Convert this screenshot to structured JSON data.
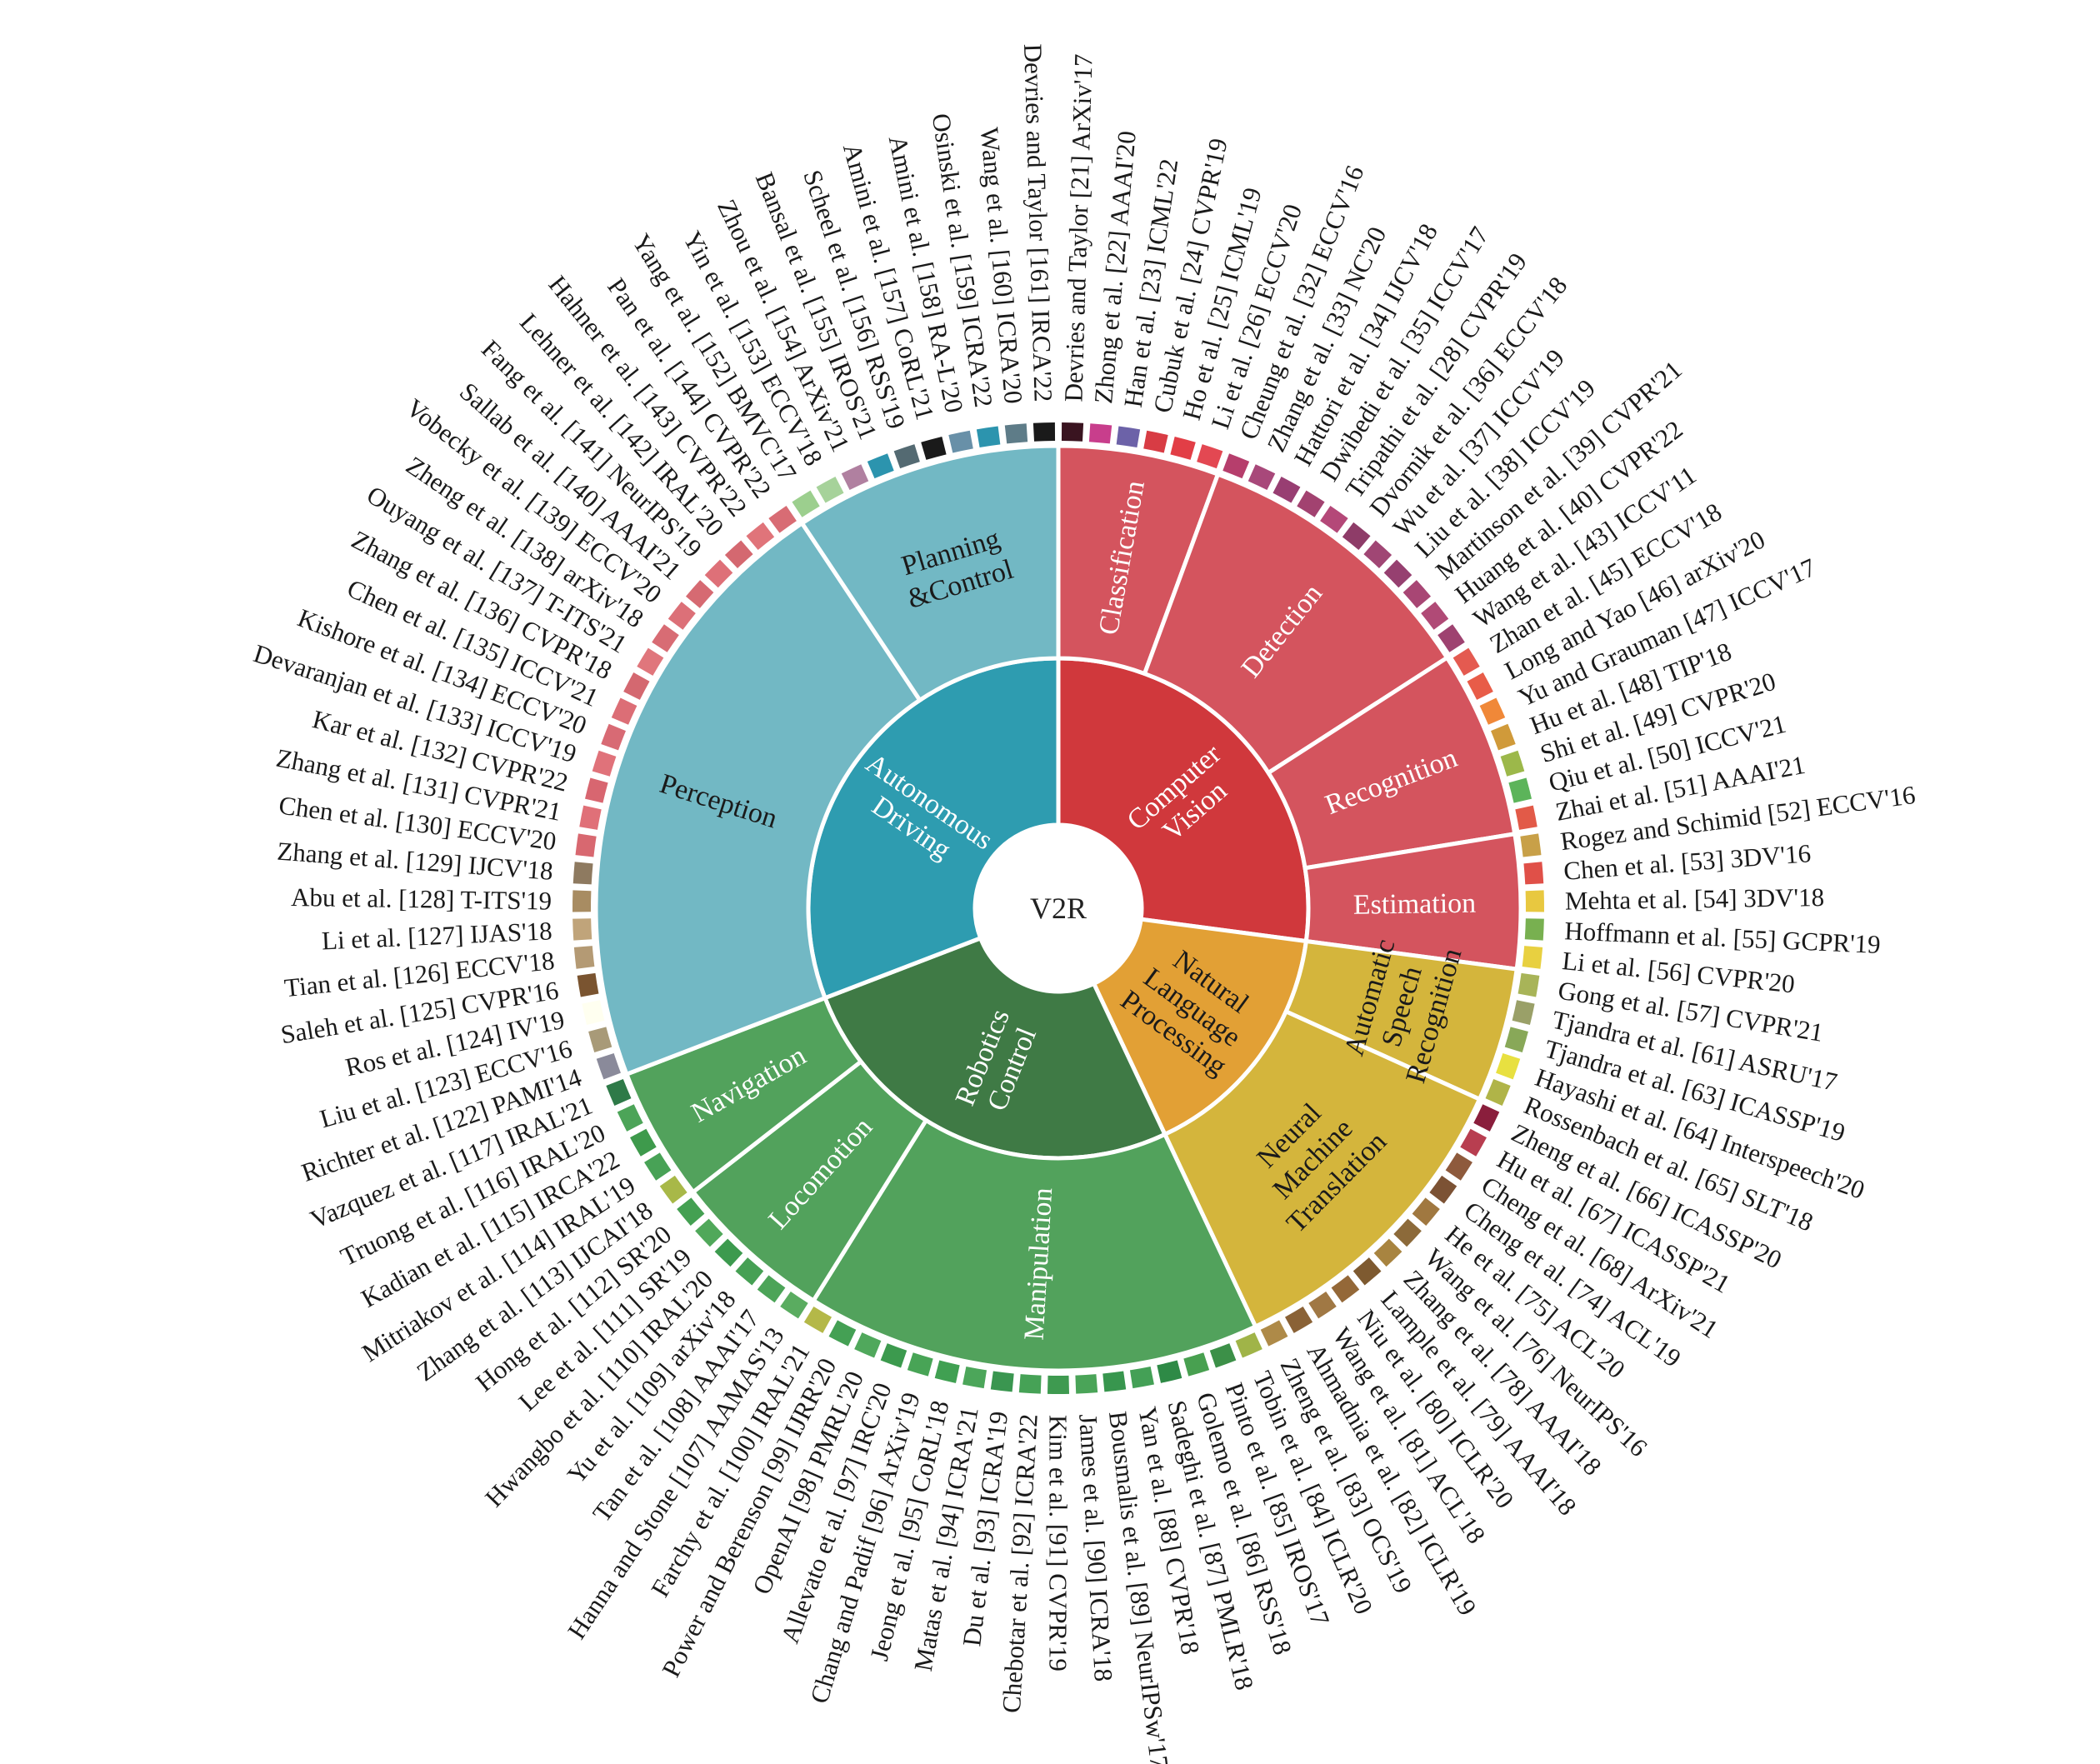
{
  "center": {
    "label": "V2R",
    "color": "#ffffff"
  },
  "domains": [
    {
      "label": "Computer\nVision",
      "color": "#D0383C",
      "text_color": "#ffffff",
      "subs": [
        {
          "label": "Classification",
          "color": "#D4545E",
          "text_color": "#ffffff",
          "refs": [
            {
              "text": "Devries and Taylor [21] ArXiv'17",
              "color": "#3A1420"
            },
            {
              "text": "Zhong et al. [22] AAAI'20",
              "color": "#C83E8C"
            },
            {
              "text": "Han et al. [23] ICML'22",
              "color": "#6C62A8"
            },
            {
              "text": "Cubuk et al. [24] CVPR'19",
              "color": "#D83C44"
            },
            {
              "text": "Ho et al. [25] ICML'19",
              "color": "#E23E46"
            },
            {
              "text": "Li et al. [26] ECCV'20",
              "color": "#E34852"
            }
          ]
        },
        {
          "label": "Detection",
          "color": "#D4545E",
          "text_color": "#ffffff",
          "refs": [
            {
              "text": "Cheung et al. [32] ECCV'16",
              "color": "#B63E6C"
            },
            {
              "text": "Zhang et al. [33] NC'20",
              "color": "#A8487A"
            },
            {
              "text": "Hattori et al. [34] IJCV'18",
              "color": "#983E72"
            },
            {
              "text": "Dwibedi et al. [35] ICCV'17",
              "color": "#A24270"
            },
            {
              "text": "Tripathi et al. [28] CVPR'19",
              "color": "#B44878"
            },
            {
              "text": "Dvornik et al. [36] ECCV'18",
              "color": "#8E3C68"
            },
            {
              "text": "Wu et al. [37] ICCV'19",
              "color": "#A04674"
            },
            {
              "text": "Liu et al. [38] ICCV'19",
              "color": "#964070"
            },
            {
              "text": "Martinson et al. [39] CVPR'21",
              "color": "#A84674"
            },
            {
              "text": "Huang et al. [40] CVPR'22",
              "color": "#B04A76"
            },
            {
              "text": "Wang et al. [43] ICCV'11",
              "color": "#9E4270"
            }
          ]
        },
        {
          "label": "Recognition",
          "color": "#D4545E",
          "text_color": "#ffffff",
          "refs": [
            {
              "text": "Zhan et al. [45] ECCV'18",
              "color": "#E45A50"
            },
            {
              "text": "Long and Yao [46] arXiv'20",
              "color": "#E85C48"
            },
            {
              "text": "Yu and Grauman [47] ICCV'17",
              "color": "#F08838"
            },
            {
              "text": "Hu et al. [48] TIP'18",
              "color": "#D09A3A"
            },
            {
              "text": "Shi et al. [49] CVPR'20",
              "color": "#9CB84A"
            },
            {
              "text": "Qiu et al. [50] ICCV'21",
              "color": "#5CB45A"
            },
            {
              "text": "Zhai et al. [51] AAAI'21",
              "color": "#E25A48"
            }
          ]
        },
        {
          "label": "Estimation",
          "color": "#D4545E",
          "text_color": "#ffffff",
          "refs": [
            {
              "text": "Rogez and Schimid [52] ECCV'16",
              "color": "#C8A048"
            },
            {
              "text": "Chen et al. [53] 3DV'16",
              "color": "#E05048"
            },
            {
              "text": "Mehta et al. [54] 3DV'18",
              "color": "#E8C840"
            },
            {
              "text": "Hoffmann et al. [55] GCPR'19",
              "color": "#78B050"
            },
            {
              "text": "Li et al. [56] CVPR'20",
              "color": "#E8D040"
            }
          ]
        }
      ]
    },
    {
      "label": "Natural\nLanguage\nProcessing",
      "color": "#E2A035",
      "text_color": "#1a1a1a",
      "subs": [
        {
          "label": "Automatic\nSpeech\nRecognition",
          "color": "#D4B53C",
          "text_color": "#1a1a1a",
          "refs": [
            {
              "text": "Gong et al. [57] CVPR'21",
              "color": "#A8B458"
            },
            {
              "text": "Tjandra et al. [61] ASRU'17",
              "color": "#9AA068"
            },
            {
              "text": "Tjandra et al. [63] ICASSP'19",
              "color": "#88A858"
            },
            {
              "text": "Hayashi et al. [64] Interspeech'20",
              "color": "#E8E040"
            },
            {
              "text": "Rossenbach et al. [65] SLT'18",
              "color": "#B0B448"
            }
          ]
        },
        {
          "label": "Neural\nMachine\nTranslation",
          "color": "#D4B53C",
          "text_color": "#1a1a1a",
          "refs": [
            {
              "text": "Zheng et al. [66] ICASSP'20",
              "color": "#8A1E3C"
            },
            {
              "text": "Hu et al. [67] ICASSP'21",
              "color": "#B83E50"
            },
            {
              "text": "Cheng et al. [68] ArXiv'21",
              "color": "#8E5A3C"
            },
            {
              "text": "Cheng et al. [74] ACL'19",
              "color": "#7C5234"
            },
            {
              "text": "He et al. [75] ACL'20",
              "color": "#A07840"
            },
            {
              "text": "Wang et al. [76] NeurIPS'16",
              "color": "#8C6A3A"
            },
            {
              "text": "Zhang et al. [78] AAAI'18",
              "color": "#A88440"
            },
            {
              "text": "Lample et al. [79] AAAI'18",
              "color": "#7E5A30"
            },
            {
              "text": "Niu et al. [80] ICLR'20",
              "color": "#946838"
            },
            {
              "text": "Wang et al. [81] ACL'18",
              "color": "#A07844"
            },
            {
              "text": "Ahmadnia et al. [82] ICLR'19",
              "color": "#8A6236"
            },
            {
              "text": "Zheng et al. [83] OCS'19",
              "color": "#AE8A48"
            }
          ]
        }
      ]
    },
    {
      "label": "Robotics\nControl",
      "color": "#3F7A45",
      "text_color": "#ffffff",
      "subs": [
        {
          "label": "Manipulation",
          "color": "#52A25C",
          "text_color": "#ffffff",
          "refs": [
            {
              "text": "Tobin et al. [84] ICLR'20",
              "color": "#A0B448"
            },
            {
              "text": "Pinto et al. [85] IROS'17",
              "color": "#3C9048"
            },
            {
              "text": "Golemo et al. [86] RSS'18",
              "color": "#48A050"
            },
            {
              "text": "Sadeghi et al. [87] PMLR'18",
              "color": "#2E8A46"
            },
            {
              "text": "Yan et al. [88] CVPR'18",
              "color": "#44A056"
            },
            {
              "text": "Bousmalis et al. [89] NeurIPSw'17",
              "color": "#38964E"
            },
            {
              "text": "James et al. [90] ICRA'18",
              "color": "#4AA458"
            },
            {
              "text": "Kim et al. [91] CVPR'19",
              "color": "#3E9A50"
            },
            {
              "text": "Chebotar et al. [92] ICRA'22",
              "color": "#46A256"
            },
            {
              "text": "Du et al. [93] ICRA'19",
              "color": "#3A9650"
            },
            {
              "text": "Matas et al. [94] ICRA'21",
              "color": "#4CA65A"
            },
            {
              "text": "Jeong et al. [95] CoRL'18",
              "color": "#40A052"
            },
            {
              "text": "Chang and Padif [96] ArXiv'19",
              "color": "#48A456"
            },
            {
              "text": "Allevato et al. [97] IRC'20",
              "color": "#3C9A4E"
            },
            {
              "text": "OpenAI [98] PMRL'20",
              "color": "#50A85C"
            },
            {
              "text": "Power and Berenson [99] IJRR'20",
              "color": "#44A054"
            },
            {
              "text": "Farchy et al. [100] IRAL'21",
              "color": "#B4B848"
            }
          ]
        },
        {
          "label": "Locomotion",
          "color": "#52A25C",
          "text_color": "#ffffff",
          "refs": [
            {
              "text": "Hanna and Stone [107] AAMAS'13",
              "color": "#5AAC60"
            },
            {
              "text": "Tan et al. [108] AAAI'17",
              "color": "#4CA458"
            },
            {
              "text": "Yu et al. [109] arXiv'18",
              "color": "#46A054"
            },
            {
              "text": "Hwangbo et al. [110] IRAL'20",
              "color": "#3C9A4E"
            },
            {
              "text": "Lee et al. [111] SR'19",
              "color": "#50A85A"
            },
            {
              "text": "Hong et al. [112] SR'20",
              "color": "#44A052"
            }
          ]
        },
        {
          "label": "Navigation",
          "color": "#52A25C",
          "text_color": "#ffffff",
          "refs": [
            {
              "text": "Zhang et al. [113] IJCAI'18",
              "color": "#A8B848"
            },
            {
              "text": "Mitriakov et al. [114] IRAL'19",
              "color": "#48A256"
            },
            {
              "text": "Kadian et al. [115] IRCA'22",
              "color": "#3E9A4C"
            },
            {
              "text": "Truong et al. [116] IRAL'20",
              "color": "#4CA458"
            },
            {
              "text": "Vazquez et al. [117] IRAL'21",
              "color": "#2E7A48"
            }
          ]
        }
      ]
    },
    {
      "label": "Autonomous\nDriving",
      "color": "#2E9CB0",
      "text_color": "#ffffff",
      "subs": [
        {
          "label": "Perception",
          "color": "#72B8C4",
          "text_color": "#1a1a1a",
          "refs": [
            {
              "text": "Richter et al. [122] PAMI'14",
              "color": "#8A8A9A"
            },
            {
              "text": "Liu et al. [123] ECCV'16",
              "color": "#A89A78"
            },
            {
              "text": "Ros et al. [124] IV'19",
              "color": "#FFFFF0"
            },
            {
              "text": "Saleh et al. [125] CVPR'16",
              "color": "#7A5430"
            },
            {
              "text": "Tian et al. [126] ECCV'18",
              "color": "#B49A74"
            },
            {
              "text": "Li et al. [127] IJAS'18",
              "color": "#C0A47A"
            },
            {
              "text": "Abu et al. [128] T-ITS'19",
              "color": "#A88C62"
            },
            {
              "text": "Zhang et al. [129] IJCV'18",
              "color": "#8E7A60"
            },
            {
              "text": "Chen et al. [130] ECCV'20",
              "color": "#D86870"
            },
            {
              "text": "Zhang et al. [131] CVPR'21",
              "color": "#E07078"
            },
            {
              "text": "Kar et al. [132] CVPR'22",
              "color": "#D86670"
            },
            {
              "text": "Devaranjan et al. [133] ICCV'19",
              "color": "#E0727A"
            },
            {
              "text": "Kishore et al. [134] ECCV'20",
              "color": "#D86A74"
            },
            {
              "text": "Chen et al. [135] ICCV'21",
              "color": "#DC6E76"
            },
            {
              "text": "Zhang et al. [136] CVPR'18",
              "color": "#D46870"
            },
            {
              "text": "Ouyang et al. [137] T-ITS'21",
              "color": "#E0767C"
            },
            {
              "text": "Zheng et al. [138] arXiv'18",
              "color": "#D86C74"
            },
            {
              "text": "Vobecky et al. [139] ECCV'20",
              "color": "#DC7078"
            },
            {
              "text": "Sallab et al. [140] AAAI'21",
              "color": "#D66A72"
            },
            {
              "text": "Fang et al. [141] NeurIPS'19",
              "color": "#DE7078"
            },
            {
              "text": "Lehner et al. [142] IRAL'20",
              "color": "#D46870"
            },
            {
              "text": "Hahner et al. [143] CVPR'22",
              "color": "#E0747A"
            },
            {
              "text": "Pan et al. [144] CVPR'22",
              "color": "#D86C74"
            }
          ]
        },
        {
          "label": "Planning\n&Control",
          "color": "#72B8C4",
          "text_color": "#1a1a1a",
          "refs": [
            {
              "text": "Yang et al. [152] BMVC'17",
              "color": "#9CCF8E"
            },
            {
              "text": "Yin et al. [153] ECCV'18",
              "color": "#A6D29A"
            },
            {
              "text": "Zhou et al. [154] ArXiv'21",
              "color": "#B080A0"
            },
            {
              "text": "Bansal et al. [155] IROS'21",
              "color": "#2C94AE"
            },
            {
              "text": "Scheel et al. [156] RSS'19",
              "color": "#546A72"
            },
            {
              "text": "Amini et al. [157] CoRL'21",
              "color": "#1A1A1A"
            },
            {
              "text": "Amini et al. [158] RA-L'20",
              "color": "#6890A8"
            },
            {
              "text": "Osinski et al. [159] ICRA'22",
              "color": "#2C94AE"
            },
            {
              "text": "Wang et al. [160] ICRA'20",
              "color": "#5E7C88"
            },
            {
              "text": "Devries and Taylor [161] IRCA'22",
              "color": "#1A1A1A"
            }
          ]
        }
      ]
    }
  ]
}
